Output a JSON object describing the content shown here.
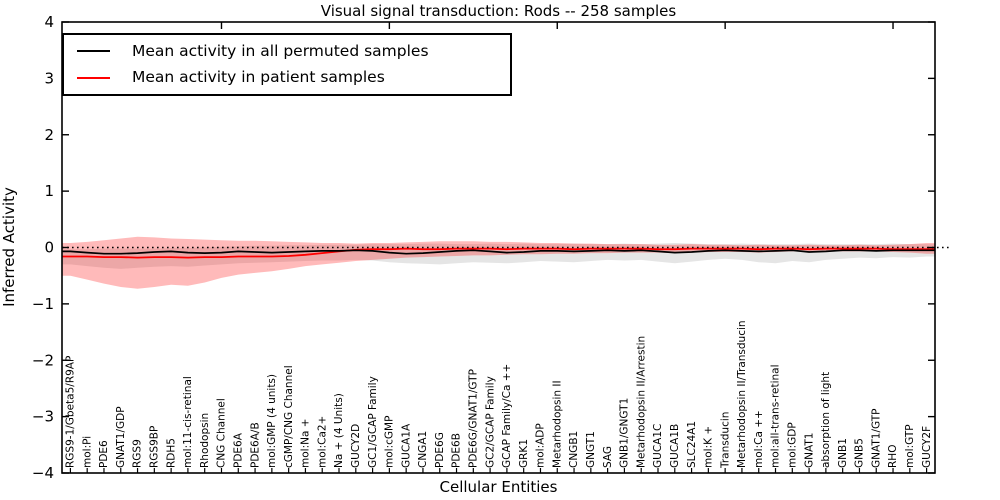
{
  "title": "Visual signal transduction: Rods -- 258 samples",
  "axes": {
    "ylabel": "Inferred Activity",
    "xlabel": "Cellular Entities",
    "ytick_labels": [
      "4",
      "3",
      "2",
      "1",
      "0",
      "−1",
      "−2",
      "−3",
      "−4"
    ]
  },
  "legend": {
    "entries": [
      {
        "label": "Mean activity in all permuted samples",
        "color": "#000000"
      },
      {
        "label": "Mean activity in patient samples",
        "color": "#ff0000"
      }
    ]
  },
  "chart_data": {
    "type": "line",
    "title": "Visual signal transduction: Rods -- 258 samples",
    "xlabel": "Cellular Entities",
    "ylabel": "Inferred Activity",
    "ylim": [
      -4,
      4
    ],
    "yticks": [
      4,
      3,
      2,
      1,
      0,
      -1,
      -2,
      -3,
      -4
    ],
    "grid": false,
    "legend_position": "upper left",
    "reference_line": {
      "y": 0,
      "style": "dotted",
      "color": "#000000"
    },
    "categories": [
      "RGS9-1/Gbeta5/R9AP",
      "mol:Pi",
      "PDE6",
      "GNAT1/GDP",
      "RGS9",
      "RGS9BP",
      "RDH5",
      "mol:11-cis-retinal",
      "Rhodopsin",
      "CNG Channel",
      "PDE6A",
      "PDE6A/B",
      "mol:GMP (4 units)",
      "cGMP/CNG Channel",
      "mol:Na +",
      "mol:Ca2+",
      "Na + (4 Units)",
      "GUCY2D",
      "GC1/GCAP Family",
      "mol:cGMP",
      "GUCA1A",
      "CNGA1",
      "PDE6G",
      "PDE6B",
      "PDE6G/GNAT1/GTP",
      "GC2/GCAP Family",
      "GCAP Family/Ca ++",
      "GRK1",
      "mol:ADP",
      "Metarhodopsin II",
      "CNGB1",
      "GNGT1",
      "SAG",
      "GNB1/GNGT1",
      "Metarhodopsin II/Arrestin",
      "GUCA1C",
      "GUCA1B",
      "SLC24A1",
      "mol:K +",
      "Transducin",
      "Metarhodopsin II/Transducin",
      "mol:Ca ++",
      "mol:all-trans-retinal",
      "mol:GDP",
      "GNAT1",
      "absorption of light",
      "GNB1",
      "GNB5",
      "GNAT1/GTP",
      "RHO",
      "mol:GTP",
      "GUCY2F"
    ],
    "series": [
      {
        "name": "Mean activity in all permuted samples",
        "color": "#000000",
        "band_color": "#e5e5e5",
        "values": [
          -0.07,
          -0.09,
          -0.11,
          -0.11,
          -0.1,
          -0.08,
          -0.07,
          -0.09,
          -0.1,
          -0.09,
          -0.07,
          -0.08,
          -0.09,
          -0.08,
          -0.07,
          -0.06,
          -0.06,
          -0.05,
          -0.06,
          -0.09,
          -0.11,
          -0.1,
          -0.08,
          -0.06,
          -0.05,
          -0.07,
          -0.09,
          -0.08,
          -0.06,
          -0.06,
          -0.07,
          -0.06,
          -0.05,
          -0.06,
          -0.05,
          -0.07,
          -0.09,
          -0.08,
          -0.06,
          -0.05,
          -0.06,
          -0.07,
          -0.06,
          -0.05,
          -0.08,
          -0.07,
          -0.05,
          -0.05,
          -0.06,
          -0.05,
          -0.05,
          -0.05
        ],
        "band_upper": [
          -0.03,
          -0.03,
          -0.02,
          -0.02,
          -0.02,
          -0.02,
          -0.01,
          -0.01,
          0.0,
          0.01,
          0.02,
          0.03,
          0.03,
          0.04,
          0.04,
          0.05,
          0.05,
          0.05,
          0.06,
          0.06,
          0.06,
          0.07,
          0.07,
          0.06,
          0.06,
          0.07,
          0.06,
          0.07,
          0.06,
          0.06,
          0.07,
          0.06,
          0.06,
          0.07,
          0.06,
          0.07,
          0.08,
          0.07,
          0.06,
          0.06,
          0.07,
          0.06,
          0.06,
          0.06,
          0.07,
          0.06,
          0.06,
          0.06,
          0.06,
          0.07,
          0.06,
          0.06
        ],
        "band_lower": [
          -0.3,
          -0.33,
          -0.36,
          -0.38,
          -0.36,
          -0.34,
          -0.33,
          -0.34,
          -0.32,
          -0.3,
          -0.28,
          -0.27,
          -0.26,
          -0.25,
          -0.24,
          -0.23,
          -0.23,
          -0.22,
          -0.23,
          -0.26,
          -0.28,
          -0.29,
          -0.3,
          -0.28,
          -0.26,
          -0.27,
          -0.28,
          -0.26,
          -0.24,
          -0.25,
          -0.26,
          -0.24,
          -0.22,
          -0.23,
          -0.22,
          -0.25,
          -0.28,
          -0.25,
          -0.22,
          -0.2,
          -0.22,
          -0.26,
          -0.28,
          -0.24,
          -0.26,
          -0.22,
          -0.2,
          -0.18,
          -0.19,
          -0.17,
          -0.18,
          -0.16
        ]
      },
      {
        "name": "Mean activity in patient samples",
        "color": "#ff0000",
        "band_color": "rgba(255,0,0,0.27)",
        "values": [
          -0.16,
          -0.16,
          -0.17,
          -0.17,
          -0.18,
          -0.17,
          -0.17,
          -0.18,
          -0.17,
          -0.17,
          -0.16,
          -0.16,
          -0.16,
          -0.15,
          -0.13,
          -0.1,
          -0.07,
          -0.04,
          -0.03,
          -0.03,
          -0.02,
          -0.03,
          -0.03,
          -0.02,
          -0.02,
          -0.02,
          -0.03,
          -0.02,
          -0.02,
          -0.02,
          -0.03,
          -0.02,
          -0.02,
          -0.02,
          -0.02,
          -0.03,
          -0.03,
          -0.02,
          -0.02,
          -0.02,
          -0.02,
          -0.03,
          -0.02,
          -0.02,
          -0.03,
          -0.02,
          -0.02,
          -0.02,
          -0.02,
          -0.03,
          -0.03,
          -0.03
        ],
        "band_upper": [
          0.08,
          0.1,
          0.13,
          0.16,
          0.19,
          0.18,
          0.16,
          0.15,
          0.14,
          0.13,
          0.12,
          0.12,
          0.11,
          0.1,
          0.09,
          0.08,
          0.08,
          0.07,
          0.08,
          0.08,
          0.09,
          0.1,
          0.11,
          0.11,
          0.11,
          0.1,
          0.1,
          0.09,
          0.08,
          0.08,
          0.07,
          0.07,
          0.06,
          0.06,
          0.06,
          0.05,
          0.05,
          0.06,
          0.05,
          0.05,
          0.04,
          0.05,
          0.04,
          0.04,
          0.05,
          0.04,
          0.04,
          0.05,
          0.04,
          0.05,
          0.06,
          0.08
        ],
        "band_lower": [
          -0.5,
          -0.57,
          -0.64,
          -0.7,
          -0.73,
          -0.7,
          -0.66,
          -0.68,
          -0.62,
          -0.54,
          -0.48,
          -0.45,
          -0.42,
          -0.38,
          -0.33,
          -0.3,
          -0.27,
          -0.24,
          -0.22,
          -0.2,
          -0.18,
          -0.17,
          -0.16,
          -0.15,
          -0.14,
          -0.14,
          -0.13,
          -0.12,
          -0.12,
          -0.11,
          -0.11,
          -0.1,
          -0.1,
          -0.09,
          -0.09,
          -0.09,
          -0.1,
          -0.09,
          -0.08,
          -0.08,
          -0.08,
          -0.09,
          -0.08,
          -0.07,
          -0.08,
          -0.07,
          -0.07,
          -0.07,
          -0.07,
          -0.08,
          -0.09,
          -0.11
        ]
      }
    ]
  }
}
